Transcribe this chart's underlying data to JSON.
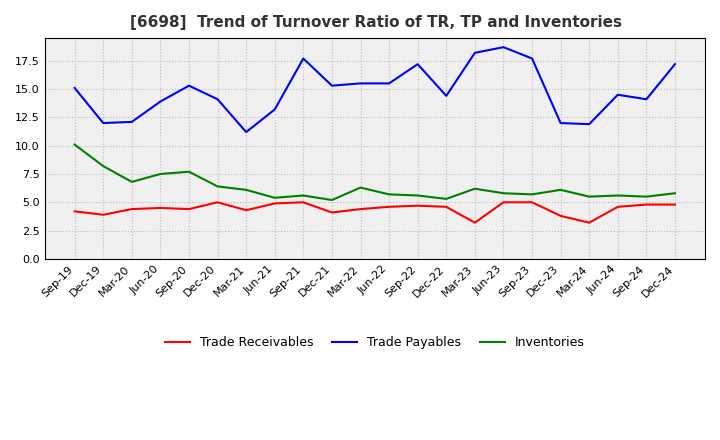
{
  "title": "[6698]  Trend of Turnover Ratio of TR, TP and Inventories",
  "labels": [
    "Sep-19",
    "Dec-19",
    "Mar-20",
    "Jun-20",
    "Sep-20",
    "Dec-20",
    "Mar-21",
    "Jun-21",
    "Sep-21",
    "Dec-21",
    "Mar-22",
    "Jun-22",
    "Sep-22",
    "Dec-22",
    "Mar-23",
    "Jun-23",
    "Sep-23",
    "Dec-23",
    "Mar-24",
    "Jun-24",
    "Sep-24",
    "Dec-24"
  ],
  "trade_receivables": [
    4.2,
    3.9,
    4.4,
    4.5,
    4.4,
    5.0,
    4.3,
    4.9,
    5.0,
    4.1,
    4.4,
    4.6,
    4.7,
    4.6,
    3.2,
    5.0,
    5.0,
    3.8,
    3.2,
    4.6,
    4.8,
    4.8
  ],
  "trade_payables": [
    15.1,
    12.0,
    12.1,
    13.9,
    15.3,
    14.1,
    11.2,
    13.2,
    17.7,
    15.3,
    15.5,
    15.5,
    17.2,
    14.4,
    18.2,
    18.7,
    17.7,
    12.0,
    11.9,
    14.5,
    14.1,
    17.2
  ],
  "inventories": [
    10.1,
    8.2,
    6.8,
    7.5,
    7.7,
    6.4,
    6.1,
    5.4,
    5.6,
    5.2,
    6.3,
    5.7,
    5.6,
    5.3,
    6.2,
    5.8,
    5.7,
    6.1,
    5.5,
    5.6,
    5.5,
    5.8
  ],
  "line_colors": {
    "trade_receivables": "#ff0000",
    "trade_payables": "#0000ff",
    "inventories": "#008000"
  },
  "ylim": [
    0.0,
    19.5
  ],
  "yticks": [
    0.0,
    2.5,
    5.0,
    7.5,
    10.0,
    12.5,
    15.0,
    17.5
  ],
  "legend_labels": [
    "Trade Receivables",
    "Trade Payables",
    "Inventories"
  ],
  "background_color": "#ffffff",
  "plot_bg_color": "#f0f0f0",
  "grid_color": "#bbbbbb",
  "title_fontsize": 11,
  "tick_fontsize": 8,
  "legend_fontsize": 9
}
